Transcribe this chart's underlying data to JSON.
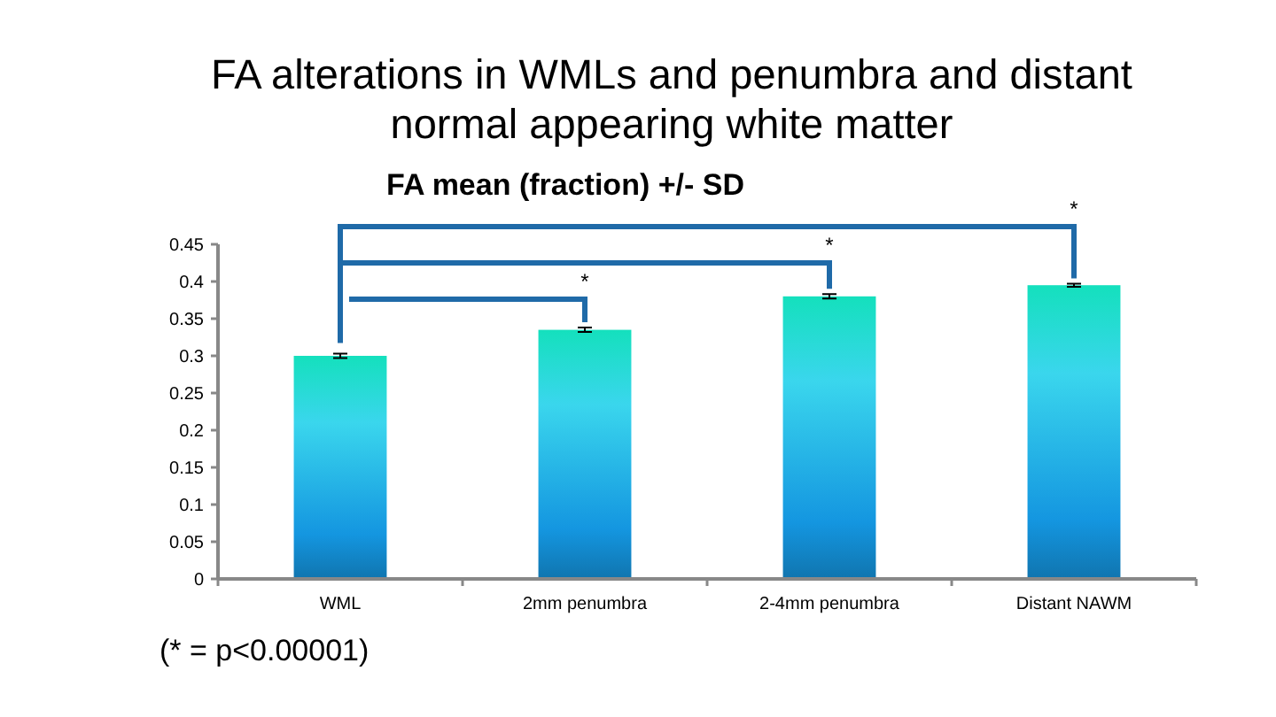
{
  "chart_data": {
    "type": "bar",
    "title": "FA alterations in WMLs and penumbra and distant normal appearing white matter",
    "subtitle": "FA mean (fraction) +/- SD",
    "categories": [
      "WML",
      "2mm penumbra",
      "2-4mm penumbra",
      "Distant NAWM"
    ],
    "values": [
      0.3,
      0.335,
      0.38,
      0.395
    ],
    "errors": [
      0.003,
      0.003,
      0.003,
      0.002
    ],
    "color": "#1496e0",
    "ylim": [
      0,
      0.45
    ],
    "yticks": [
      0,
      0.05,
      0.1,
      0.15,
      0.2,
      0.25,
      0.3,
      0.35,
      0.4,
      0.45
    ],
    "annotations": [
      "*",
      "*",
      "*",
      "(* = p<0.00001)"
    ]
  }
}
